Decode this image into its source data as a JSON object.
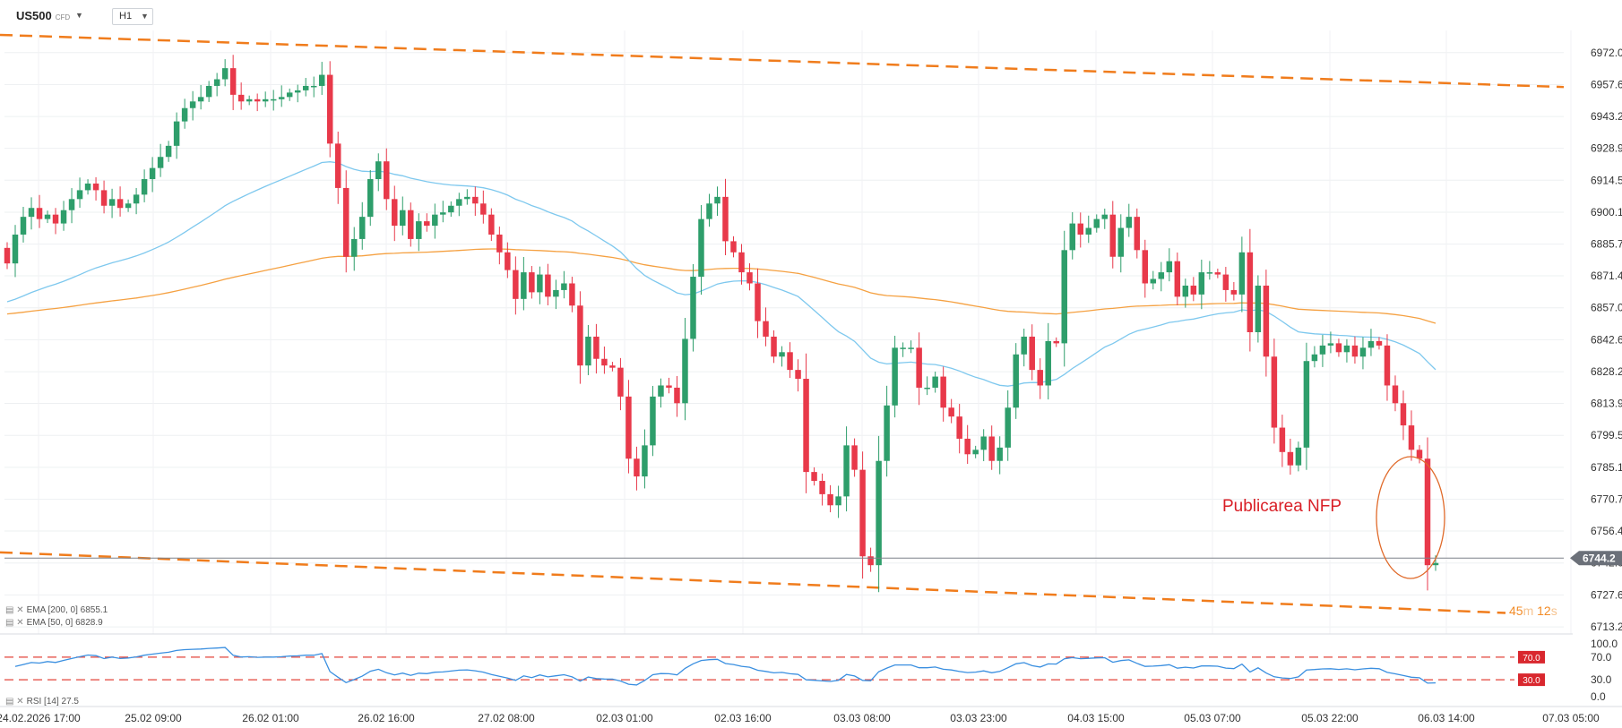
{
  "toolbar": {
    "symbol": "US500",
    "symbol_type": "CFD",
    "timeframe": "H1"
  },
  "legend": {
    "ema200": "EMA [200, 0] 6855.1",
    "ema50": "EMA [50, 0] 6828.9",
    "rsi": "RSI [14] 27.5"
  },
  "annotation": "Publicarea NFP",
  "countdown": {
    "minutes": "45",
    "m": "m",
    "seconds": "12",
    "s": "s"
  },
  "colors": {
    "up": "#2e9e6b",
    "down": "#e8394a",
    "ema200": "#f5a142",
    "ema50": "#7ec8ee",
    "channel": "#f07c1c",
    "rsi": "#3a8fe0",
    "rsi_levels": "#e3433a",
    "price_tag": "#6b7079"
  },
  "chart_data": [
    {
      "type": "candlestick",
      "symbol": "US500",
      "timeframe": "H1",
      "ylim": [
        6710,
        6982
      ],
      "y_ticks": [
        "6972.0",
        "6957.6",
        "6943.2",
        "6928.9",
        "6914.5",
        "6900.1",
        "6885.7",
        "6871.4",
        "6857.0",
        "6842.6",
        "6828.2",
        "6813.9",
        "6799.5",
        "6785.1",
        "6770.7",
        "6756.4",
        "6742.0",
        "6727.6",
        "6713.2"
      ],
      "x_ticks": [
        "24.02.2026  17:00",
        "25.02  09:00",
        "26.02  01:00",
        "26.02  16:00",
        "27.02  08:00",
        "02.03  01:00",
        "02.03  16:00",
        "03.03  08:00",
        "03.03  23:00",
        "04.03  15:00",
        "05.03  07:00",
        "05.03  22:00",
        "06.03  14:00",
        "07.03  05:00"
      ],
      "current_price": "6744.2",
      "closes": [
        6877,
        6890,
        6898,
        6902,
        6897,
        6899,
        6895,
        6901,
        6906,
        6910,
        6913,
        6910,
        6903,
        6906,
        6902,
        6904,
        6908,
        6915,
        6920,
        6925,
        6930,
        6941,
        6947,
        6950,
        6952,
        6957,
        6960,
        6965,
        6953,
        6950,
        6951,
        6950,
        6951,
        6951,
        6952,
        6954,
        6955,
        6957,
        6957,
        6962,
        6931,
        6911,
        6880,
        6888,
        6898,
        6915,
        6923,
        6906,
        6894,
        6901,
        6888,
        6896,
        6894,
        6899,
        6900,
        6903,
        6906,
        6907,
        6904,
        6899,
        6890,
        6882,
        6874,
        6861,
        6873,
        6864,
        6872,
        6862,
        6865,
        6868,
        6858,
        6831,
        6844,
        6834,
        6831,
        6830,
        6817,
        6789,
        6781,
        6795,
        6817,
        6822,
        6821,
        6814,
        6843,
        6871,
        6897,
        6904,
        6907,
        6887,
        6882,
        6873,
        6868,
        6851,
        6844,
        6835,
        6837,
        6829,
        6825,
        6783,
        6779,
        6773,
        6768,
        6772,
        6795,
        6784,
        6745,
        6741,
        6788,
        6813,
        6839,
        6839,
        6839,
        6821,
        6821,
        6826,
        6812,
        6808,
        6798,
        6791,
        6793,
        6799,
        6788,
        6794,
        6812,
        6836,
        6844,
        6829,
        6822,
        6842,
        6841,
        6883,
        6895,
        6890,
        6893,
        6897,
        6899,
        6880,
        6893,
        6898,
        6883,
        6868,
        6870,
        6873,
        6878,
        6862,
        6867,
        6863,
        6873,
        6873,
        6872,
        6865,
        6863,
        6882,
        6846,
        6867,
        6835,
        6803,
        6792,
        6786,
        6794,
        6833,
        6836,
        6840,
        6841,
        6837,
        6840,
        6835,
        6839,
        6842,
        6840,
        6822,
        6814,
        6804,
        6793,
        6789,
        6741,
        6742
      ],
      "ema200_end": 6855.1,
      "ema50_end": 6828.9
    },
    {
      "type": "line",
      "indicator": "RSI",
      "period": 14,
      "ylim": [
        0,
        100
      ],
      "y_ticks": [
        "100.0",
        "70.0",
        "30.0",
        "0.0"
      ],
      "levels": [
        70,
        30
      ],
      "level_labels": [
        "70.0",
        "30.0"
      ],
      "current": 27.5
    }
  ]
}
